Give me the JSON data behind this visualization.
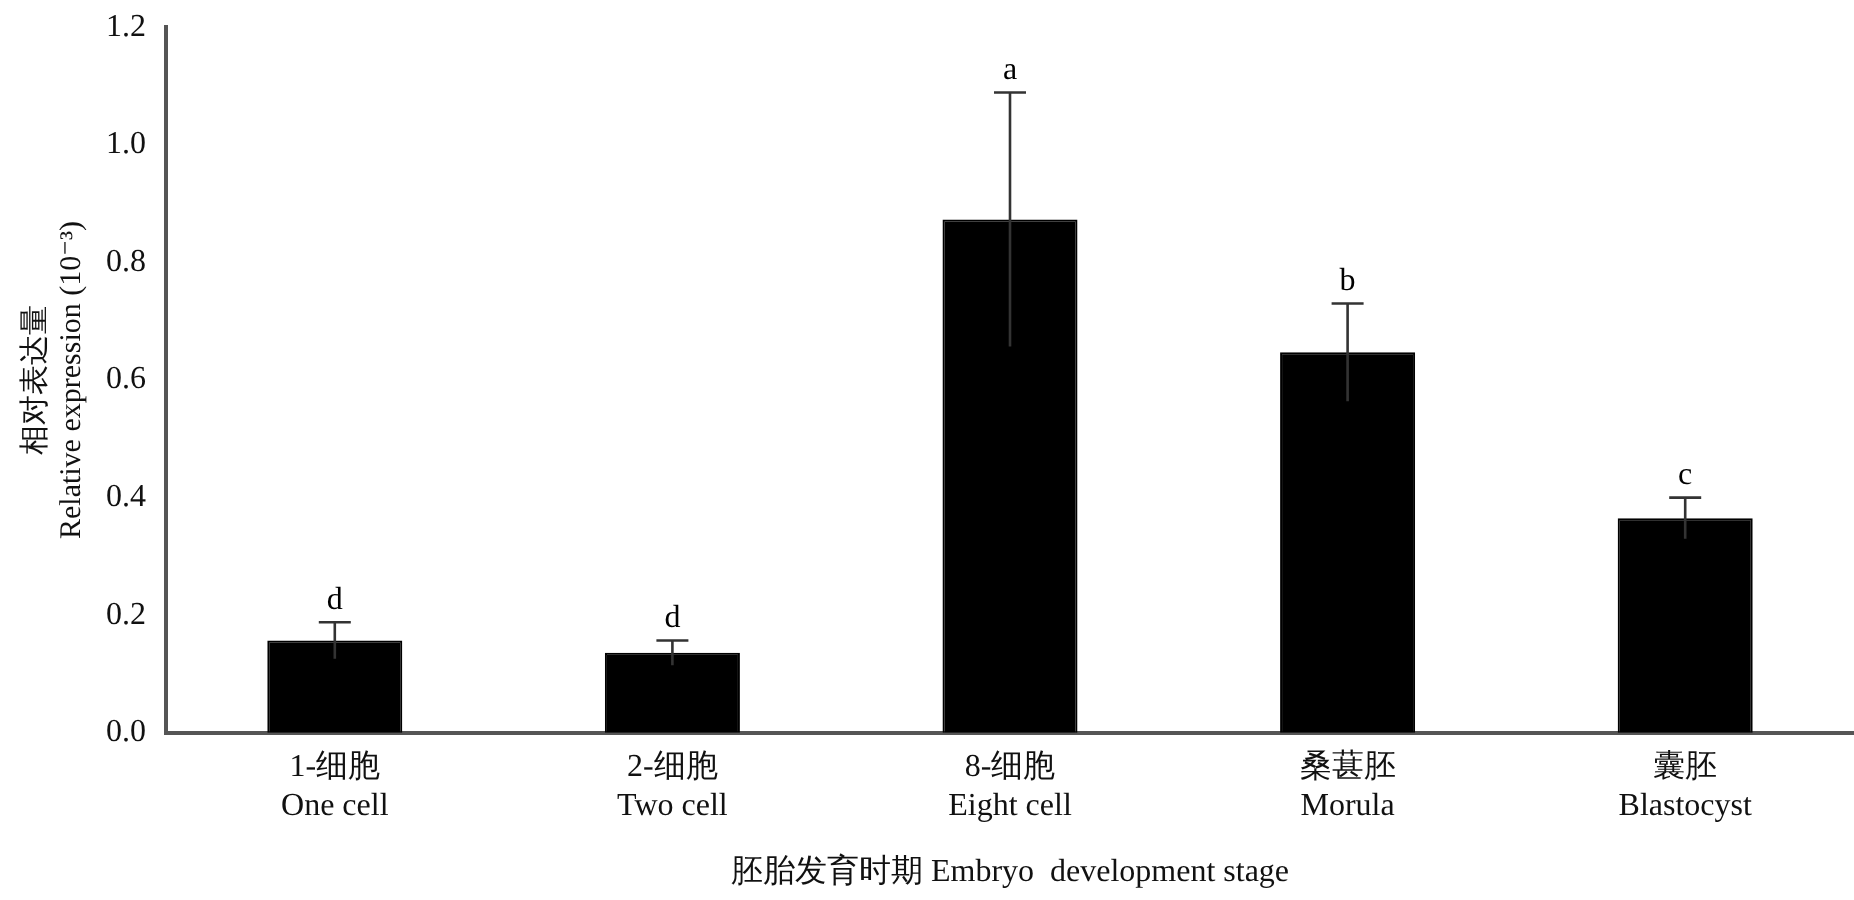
{
  "chart_data": {
    "type": "bar",
    "categories": [
      "1-细胞\nOne cell",
      "2-细胞\nTwo cell",
      "8-细胞\nEight cell",
      "桑葚胚\nMorula",
      "囊胚\nBlastocyst"
    ],
    "values": [
      0.157,
      0.136,
      0.873,
      0.647,
      0.365
    ],
    "errors": [
      0.031,
      0.021,
      0.216,
      0.083,
      0.035
    ],
    "color": "#000000",
    "xlabel": "胚胎发育时期 Embryo  development stage",
    "ylabel": "相对表达量\nRelative expression (10⁻³)",
    "ylim": [
      0,
      1.2
    ],
    "yticks": [
      {
        "value": 0,
        "label": "0.0"
      },
      {
        "value": 0.2,
        "label": "0.2"
      },
      {
        "value": 0.4,
        "label": "0.4"
      },
      {
        "value": 0.6,
        "label": "0.6"
      },
      {
        "value": 0.8,
        "label": "0.8"
      },
      {
        "value": 1.0,
        "label": "1.0"
      },
      {
        "value": 1.2,
        "label": "1.2"
      }
    ],
    "annotations": [
      {
        "text": "d",
        "x": "1-细胞\nOne cell",
        "y": 0.188
      },
      {
        "text": "d",
        "x": "2-细胞\nTwo cell",
        "y": 0.157
      },
      {
        "text": "a",
        "x": "8-细胞\nEight cell",
        "y": 1.089
      },
      {
        "text": "b",
        "x": "桑葚胚\nMorula",
        "y": 0.73
      },
      {
        "text": "c",
        "x": "囊胚\nBlastocyst",
        "y": 0.4
      }
    ],
    "grid": false,
    "legend": false
  }
}
